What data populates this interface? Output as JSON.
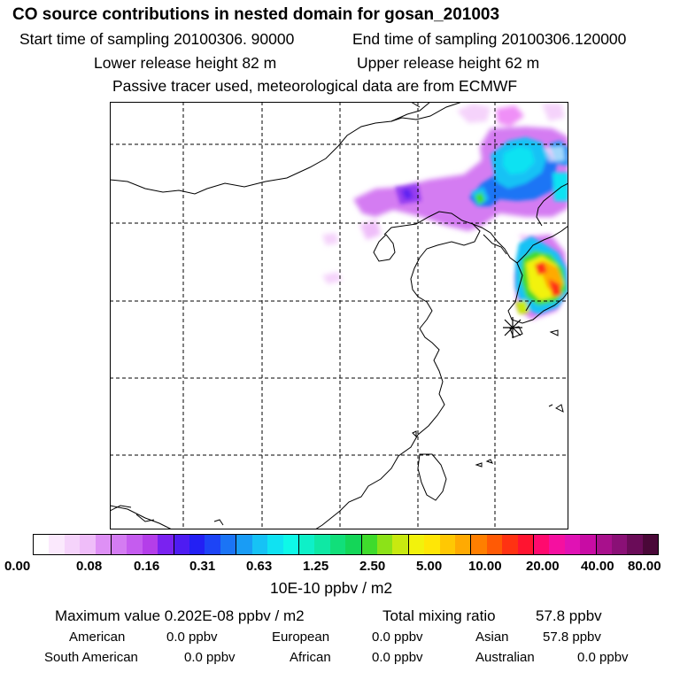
{
  "header": {
    "title": "CO  source contributions in nested domain for gosan_201003",
    "start_label": "Start time of sampling 20100306. 90000",
    "end_label": "End time of sampling 20100306.120000",
    "lower_label": "Lower release height   82 m",
    "upper_label": "Upper release height   62 m",
    "passive_label": "Passive tracer used, meteorological data are from ECMWF"
  },
  "map": {
    "receptor_marker": "asterisk-icon",
    "grid": true
  },
  "colorbar": {
    "ticks": [
      "0.00",
      "0.08",
      "0.16",
      "0.31",
      "0.63",
      "1.25",
      "2.50",
      "5.00",
      "10.00",
      "20.00",
      "40.00",
      "80.00"
    ],
    "unit_label": "10E-10 ppbv / m2",
    "colors": [
      "#ffffff",
      "#fbe9fd",
      "#f5d3fb",
      "#efbdf9",
      "#de90f5",
      "#d47cf2",
      "#c55cef",
      "#b43ee9",
      "#7a22f0",
      "#4e1cf2",
      "#2320f4",
      "#1d44f6",
      "#1b74f5",
      "#199cf5",
      "#16c2f5",
      "#10e2f2",
      "#0ef8e8",
      "#0ef0c8",
      "#0fe8a4",
      "#11df7a",
      "#14d658",
      "#3fdb2c",
      "#8ce218",
      "#c8e910",
      "#f2f20c",
      "#ffe606",
      "#ffc803",
      "#ffaa02",
      "#ff7f00",
      "#ff5a05",
      "#ff3212",
      "#ff1430",
      "#ff0a6e",
      "#f510a0",
      "#e012b4",
      "#c80ca4",
      "#a8108c",
      "#8a1076",
      "#6a0c58",
      "#4a0838"
    ]
  },
  "stats": {
    "max_label": "Maximum value  0.202E-08 ppbv / m2",
    "total_label": "Total mixing ratio",
    "total_value": "57.8 ppbv",
    "american_label": "American",
    "american_value": "0.0 ppbv",
    "european_label": "European",
    "european_value": "0.0 ppbv",
    "asian_label": "Asian",
    "asian_value": "57.8 ppbv",
    "south_american_label": "South American",
    "south_american_value": "0.0 ppbv",
    "african_label": "African",
    "african_value": "0.0 ppbv",
    "australian_label": "Australian",
    "australian_value": "0.0 ppbv"
  }
}
